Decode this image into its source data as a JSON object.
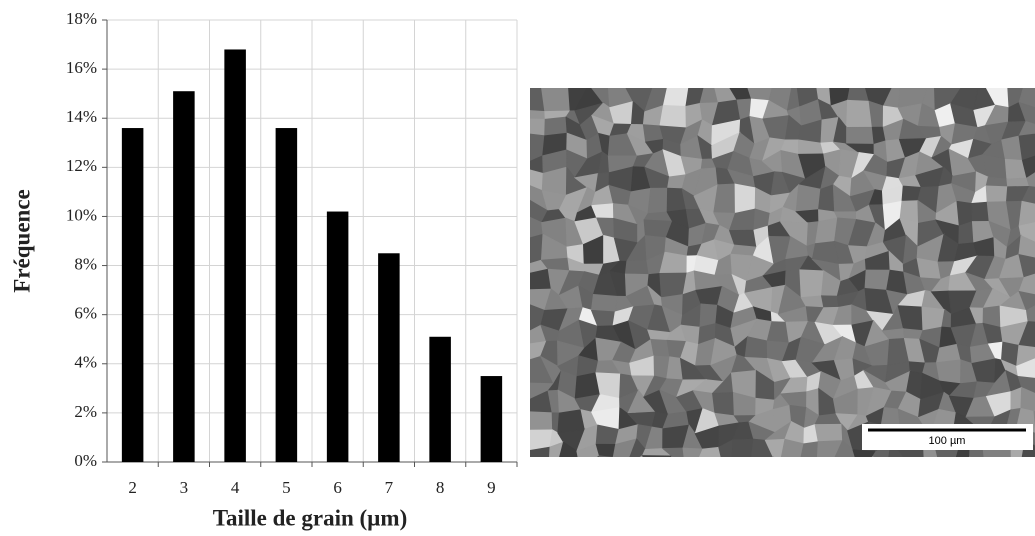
{
  "chart_data": {
    "type": "bar",
    "x_label": "Taille de grain (µm)",
    "y_label": "Fréquence",
    "categories": [
      "2",
      "3",
      "4",
      "5",
      "6",
      "7",
      "8",
      "9"
    ],
    "values": [
      13.6,
      15.1,
      16.8,
      13.6,
      10.2,
      8.5,
      5.1,
      3.5
    ],
    "color": "#000000",
    "ylim": [
      0,
      18
    ],
    "yticks": [
      {
        "value": 0,
        "label": "0%"
      },
      {
        "value": 2,
        "label": "2%"
      },
      {
        "value": 4,
        "label": "4%"
      },
      {
        "value": 6,
        "label": "6%"
      },
      {
        "value": 8,
        "label": "8%"
      },
      {
        "value": 10,
        "label": "10%"
      },
      {
        "value": 12,
        "label": "12%"
      },
      {
        "value": 14,
        "label": "14%"
      },
      {
        "value": 16,
        "label": "16%"
      },
      {
        "value": 18,
        "label": "18%"
      }
    ],
    "grid": true
  },
  "micrograph": {
    "scale_bar": "100 µm"
  }
}
